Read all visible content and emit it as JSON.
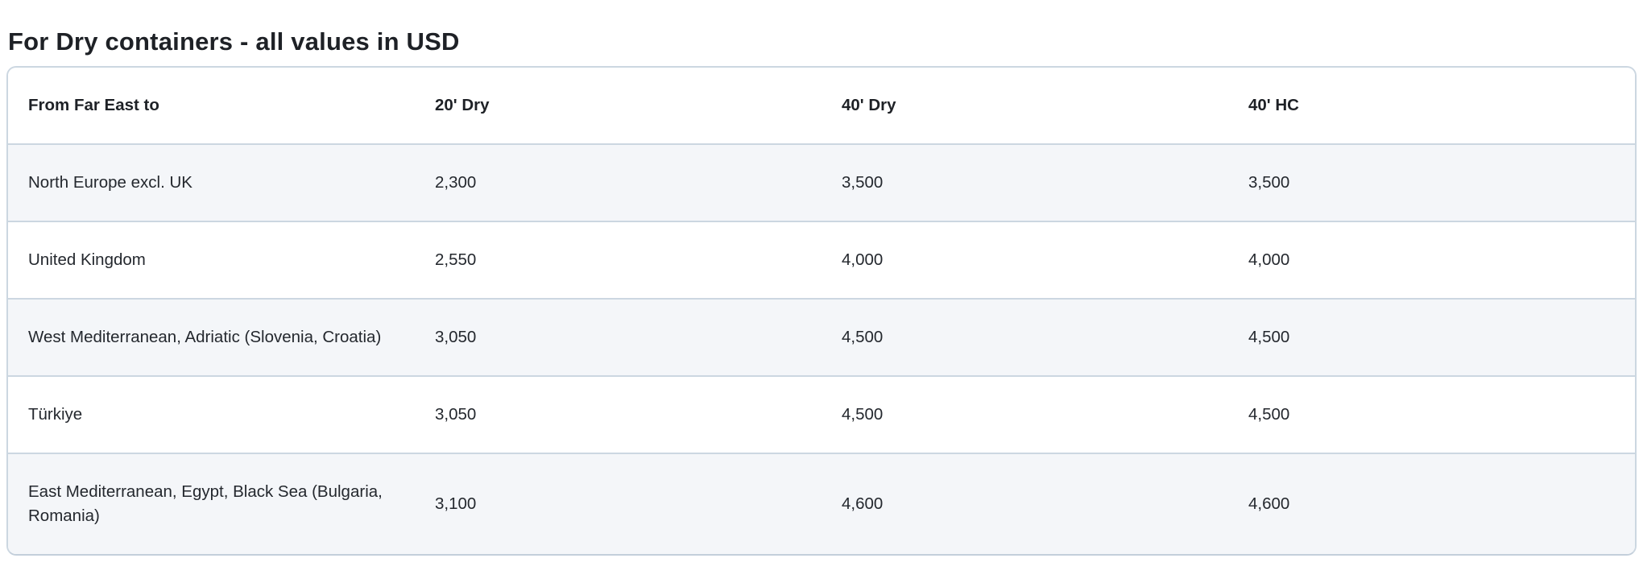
{
  "page": {
    "title": "For Dry containers - all values in USD"
  },
  "table": {
    "columns": [
      "From Far East to",
      "20' Dry",
      "40' Dry",
      "40' HC"
    ],
    "rows": [
      [
        "North Europe excl. UK",
        "2,300",
        "3,500",
        "3,500"
      ],
      [
        "United Kingdom",
        "2,550",
        "4,000",
        "4,000"
      ],
      [
        "West Mediterranean, Adriatic (Slovenia, Croatia)",
        "3,050",
        "4,500",
        "4,500"
      ],
      [
        "Türkiye",
        "3,050",
        "4,500",
        "4,500"
      ],
      [
        "East Mediterranean, Egypt, Black Sea (Bulgaria, Romania)",
        "3,100",
        "4,600",
        "4,600"
      ]
    ]
  },
  "colors": {
    "border": "#ccd7e1",
    "row_alt_bg": "#f4f6f9",
    "header_bg": "#ffffff",
    "text": "#24282e",
    "title_text": "#1e2126"
  }
}
